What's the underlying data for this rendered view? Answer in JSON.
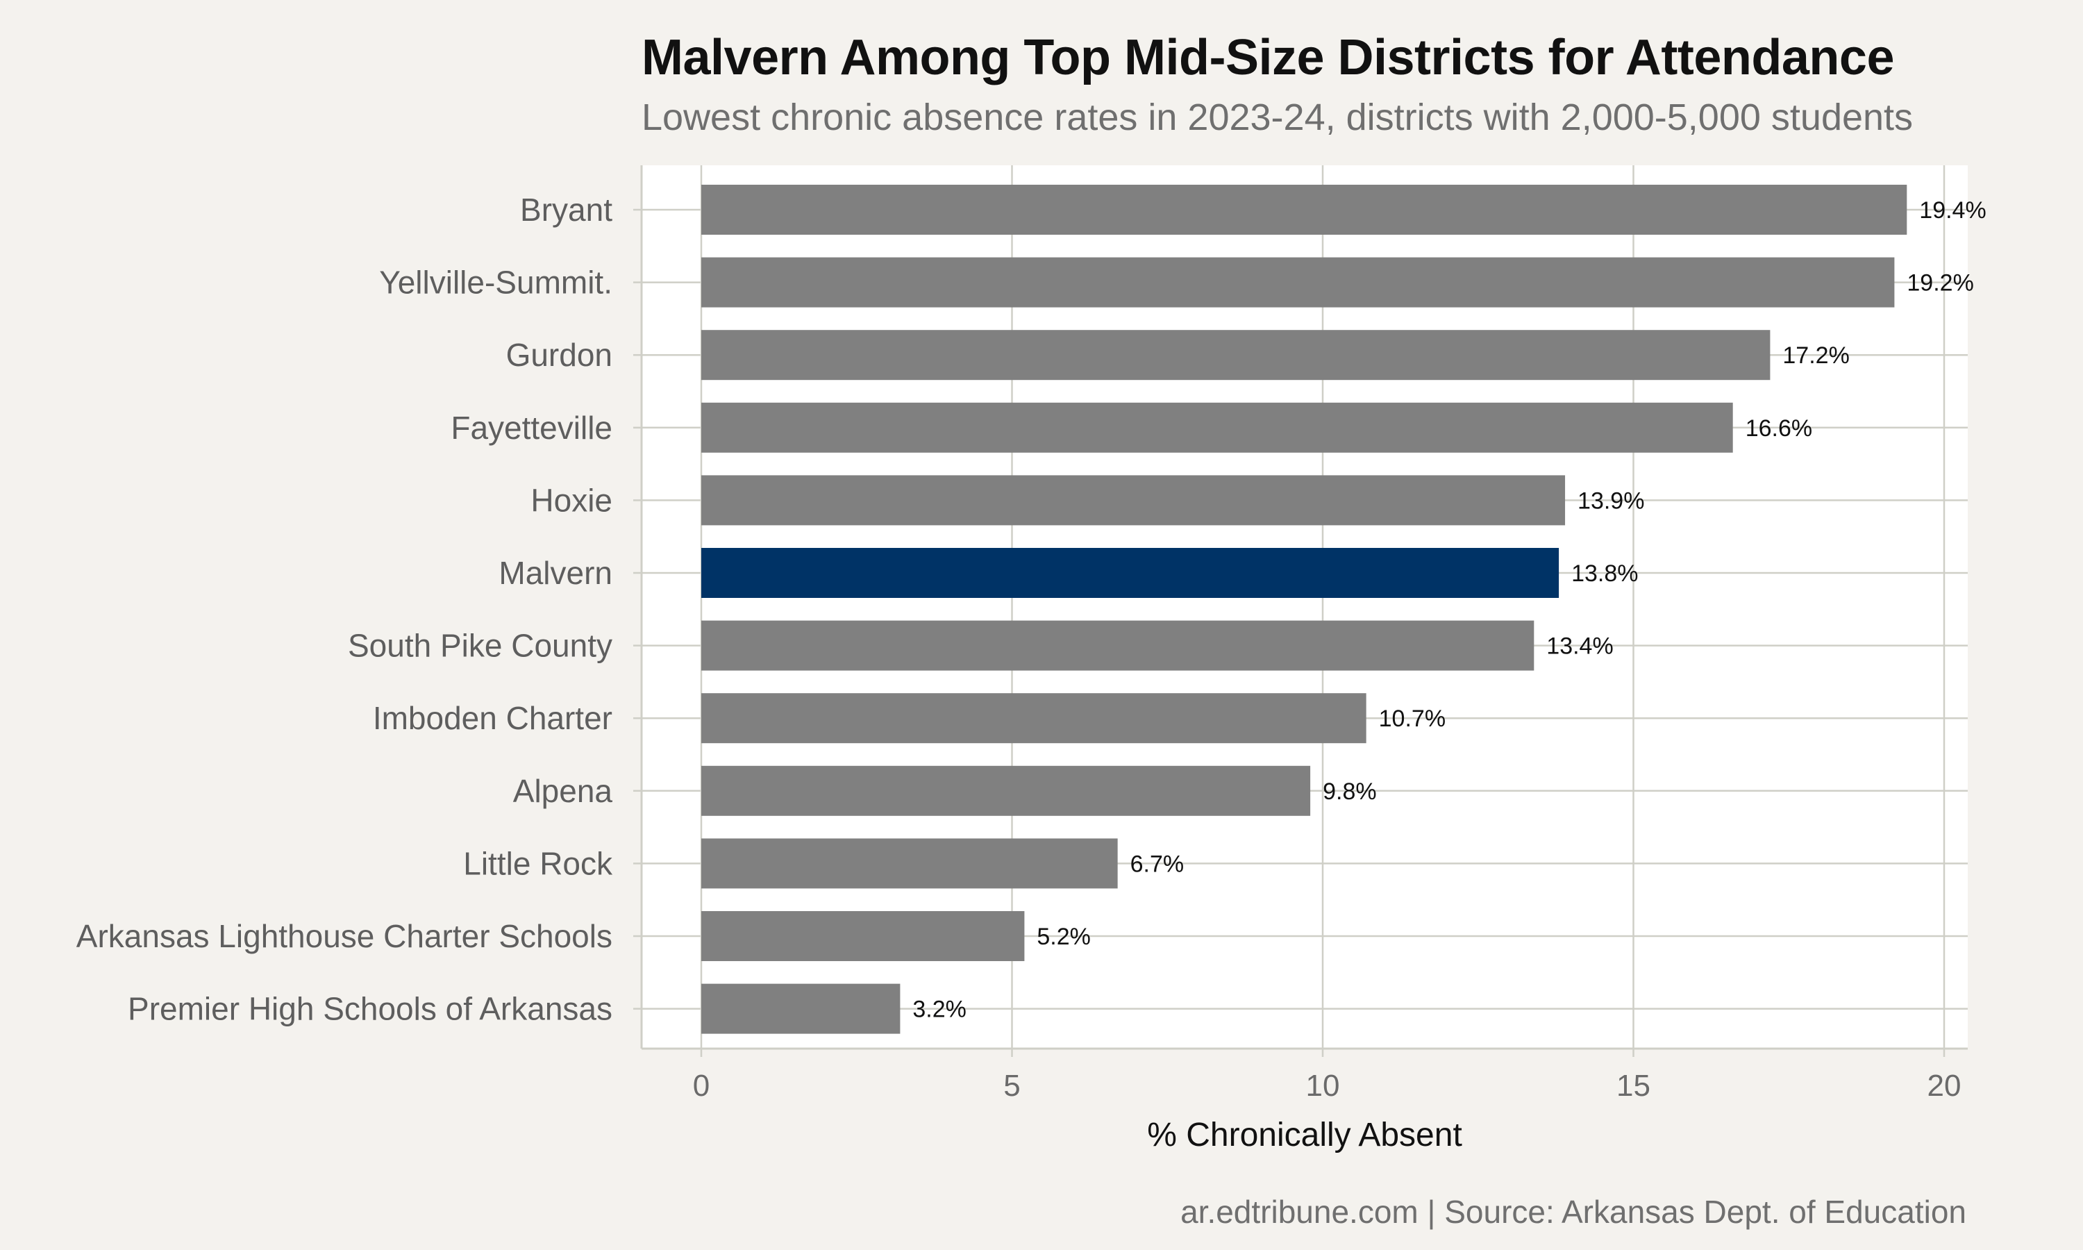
{
  "chart_data": {
    "type": "bar",
    "orientation": "horizontal",
    "title": "Malvern Among Top Mid-Size Districts for Attendance",
    "subtitle": "Lowest chronic absence rates in 2023-24, districts with 2,000-5,000 students",
    "xlabel": "% Chronically Absent",
    "ylabel": "",
    "caption": "ar.edtribune.com | Source: Arkansas Dept. of Education",
    "categories": [
      "Bryant",
      "Yellville-Summit.",
      "Gurdon",
      "Fayetteville",
      "Hoxie",
      "Malvern",
      "South Pike County",
      "Imboden Charter",
      "Alpena",
      "Little Rock",
      "Arkansas Lighthouse Charter Schools",
      "Premier High Schools of Arkansas"
    ],
    "values": [
      19.4,
      19.2,
      17.2,
      16.6,
      13.9,
      13.8,
      13.4,
      10.7,
      9.8,
      6.7,
      5.2,
      3.2
    ],
    "data_labels": [
      "19.4%",
      "19.2%",
      "17.2%",
      "16.6%",
      "13.9%",
      "13.8%",
      "13.4%",
      "10.7%",
      "9.8%",
      "6.7%",
      "5.2%",
      "3.2%"
    ],
    "highlight": "Malvern",
    "xlim": [
      0,
      20
    ],
    "xticks": [
      0,
      5,
      10,
      15,
      20
    ],
    "grid": true,
    "legend": "none",
    "colors": {
      "bar": "#808080",
      "highlight": "#003366",
      "panel": "#ffffff",
      "background": "#f4f2ee",
      "grid": "#cfcfc7"
    }
  }
}
